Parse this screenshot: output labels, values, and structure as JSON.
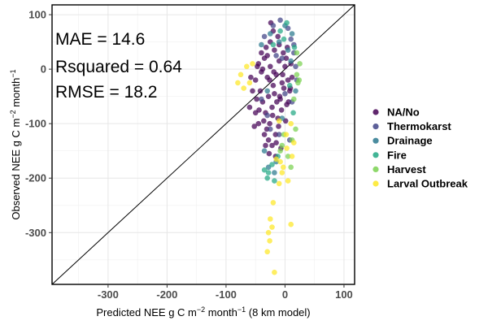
{
  "chart_data": {
    "type": "scatter",
    "title": "",
    "xlabel": "Predicted NEE g C m^-2 month^-1 (8 km model)",
    "ylabel": "Observed NEE g C m^-2 month^-1",
    "xlim": [
      -395,
      118
    ],
    "ylim": [
      -395,
      118
    ],
    "x_ticks": [
      -300,
      -200,
      -100,
      0,
      100
    ],
    "y_ticks": [
      100,
      0,
      -100,
      -200,
      -300
    ],
    "grid": true,
    "reference_line": "1:1",
    "legend_position": "right",
    "annotations": [
      "MAE = 14.6",
      "Rsquared = 0.64",
      "RMSE = 18.2"
    ],
    "series": [
      {
        "name": "NA/No",
        "color": "#440154",
        "points": [
          [
            -45,
            10
          ],
          [
            -40,
            -5
          ],
          [
            -35,
            20
          ],
          [
            -30,
            -15
          ],
          [
            -25,
            5
          ],
          [
            -20,
            -30
          ],
          [
            -15,
            -10
          ],
          [
            -10,
            15
          ],
          [
            -5,
            -25
          ],
          [
            0,
            5
          ],
          [
            5,
            -20
          ],
          [
            10,
            10
          ],
          [
            -50,
            -20
          ],
          [
            -42,
            -40
          ],
          [
            -38,
            -60
          ],
          [
            -33,
            -80
          ],
          [
            -28,
            -50
          ],
          [
            -22,
            -70
          ],
          [
            -18,
            -45
          ],
          [
            -12,
            -90
          ],
          [
            -8,
            -55
          ],
          [
            -2,
            -35
          ],
          [
            3,
            -65
          ],
          [
            8,
            -40
          ],
          [
            -48,
            -55
          ],
          [
            -44,
            -75
          ],
          [
            -36,
            -95
          ],
          [
            -31,
            -110
          ],
          [
            -26,
            -100
          ],
          [
            -21,
            -85
          ],
          [
            -16,
            -120
          ],
          [
            -11,
            -105
          ],
          [
            -6,
            -75
          ],
          [
            1,
            -95
          ],
          [
            6,
            -60
          ],
          [
            -40,
            30
          ],
          [
            -32,
            40
          ],
          [
            -25,
            50
          ],
          [
            -18,
            35
          ],
          [
            -10,
            45
          ],
          [
            -3,
            30
          ],
          [
            4,
            40
          ],
          [
            -20,
            70
          ],
          [
            -12,
            60
          ],
          [
            -28,
            -130
          ],
          [
            -22,
            -140
          ],
          [
            -35,
            -120
          ],
          [
            -15,
            -135
          ],
          [
            -30,
            25
          ],
          [
            -45,
            -100
          ],
          [
            -50,
            -80
          ],
          [
            -38,
            0
          ],
          [
            -26,
            -20
          ],
          [
            -14,
            -60
          ],
          [
            -4,
            -10
          ],
          [
            12,
            -15
          ],
          [
            -55,
            -40
          ],
          [
            -60,
            -70
          ],
          [
            -58,
            -15
          ],
          [
            -24,
            85
          ],
          [
            -16,
            -160
          ],
          [
            -7,
            -145
          ],
          [
            -27,
            -155
          ],
          [
            -33,
            -140
          ],
          [
            2,
            20
          ],
          [
            9,
            -35
          ],
          [
            -52,
            -105
          ],
          [
            -47,
            5
          ],
          [
            -19,
            -5
          ],
          [
            -9,
            -50
          ]
        ]
      },
      {
        "name": "Thermokarst",
        "color": "#414487",
        "points": [
          [
            15,
            30
          ],
          [
            10,
            55
          ],
          [
            -20,
            80
          ],
          [
            -5,
            20
          ],
          [
            0,
            -45
          ],
          [
            -30,
            -85
          ],
          [
            -10,
            -120
          ],
          [
            12,
            -60
          ],
          [
            18,
            5
          ],
          [
            -35,
            60
          ],
          [
            5,
            75
          ],
          [
            -15,
            25
          ],
          [
            -25,
            -110
          ],
          [
            -40,
            -55
          ],
          [
            8,
            -130
          ],
          [
            20,
            -20
          ],
          [
            -8,
            90
          ],
          [
            15,
            45
          ]
        ]
      },
      {
        "name": "Drainage",
        "color": "#2a788e",
        "points": [
          [
            -25,
            65
          ],
          [
            -10,
            50
          ],
          [
            0,
            80
          ],
          [
            5,
            35
          ],
          [
            -35,
            -150
          ],
          [
            -15,
            -170
          ],
          [
            -28,
            -180
          ],
          [
            10,
            15
          ],
          [
            18,
            -40
          ],
          [
            -5,
            -90
          ],
          [
            -18,
            -190
          ],
          [
            -30,
            -40
          ],
          [
            12,
            65
          ],
          [
            -40,
            45
          ]
        ]
      },
      {
        "name": "Fire",
        "color": "#22a884",
        "points": [
          [
            -20,
            45
          ],
          [
            -8,
            70
          ],
          [
            3,
            85
          ],
          [
            -28,
            -190
          ],
          [
            -22,
            -175
          ],
          [
            8,
            -30
          ],
          [
            14,
            -80
          ],
          [
            -12,
            -160
          ],
          [
            -2,
            55
          ],
          [
            -30,
            -200
          ],
          [
            -18,
            -205
          ],
          [
            16,
            40
          ],
          [
            -35,
            -185
          ]
        ]
      },
      {
        "name": "Harvest",
        "color": "#7ad151",
        "points": [
          [
            20,
            -10
          ],
          [
            22,
            -25
          ],
          [
            18,
            -110
          ],
          [
            25,
            10
          ],
          [
            -2,
            -120
          ],
          [
            5,
            -160
          ],
          [
            12,
            -130
          ],
          [
            15,
            -55
          ],
          [
            24,
            -20
          ],
          [
            20,
            30
          ],
          [
            -5,
            -140
          ],
          [
            10,
            -180
          ],
          [
            -8,
            -150
          ]
        ]
      },
      {
        "name": "Larval Outbreak",
        "color": "#fde725",
        "points": [
          [
            -80,
            -25
          ],
          [
            -75,
            -10
          ],
          [
            -70,
            -35
          ],
          [
            -65,
            5
          ],
          [
            -60,
            -25
          ],
          [
            -20,
            -245
          ],
          [
            -25,
            -275
          ],
          [
            -22,
            -290
          ],
          [
            -28,
            -300
          ],
          [
            -26,
            -315
          ],
          [
            -30,
            -335
          ],
          [
            -18,
            -373
          ],
          [
            10,
            -285
          ],
          [
            -5,
            -190
          ],
          [
            -15,
            -165
          ],
          [
            3,
            -145
          ],
          [
            -10,
            -210
          ],
          [
            5,
            -205
          ],
          [
            -3,
            -180
          ],
          [
            2,
            -120
          ],
          [
            10,
            -100
          ],
          [
            12,
            -160
          ],
          [
            -10,
            -95
          ],
          [
            -55,
            10
          ],
          [
            15,
            -135
          ],
          [
            -8,
            -170
          ]
        ]
      }
    ]
  }
}
